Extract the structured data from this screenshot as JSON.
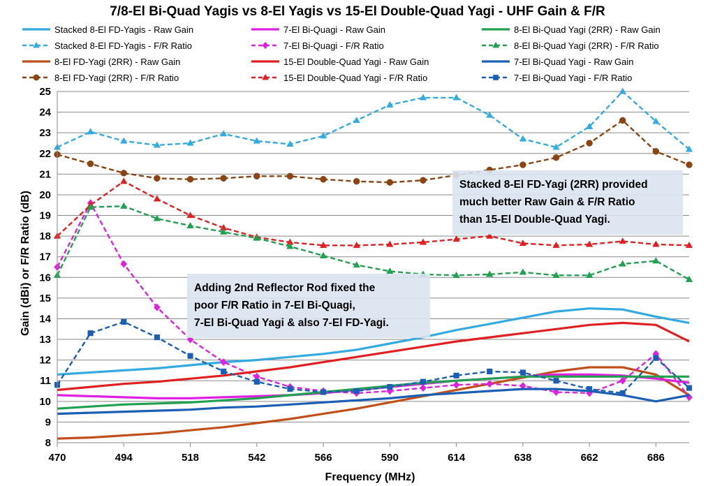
{
  "chart_data": {
    "type": "line",
    "title": "7/8-El Bi-Quad Yagis vs 8-El Yagis vs 15-El Double-Quad Yagi - UHF Gain & F/R",
    "xlabel": "Frequency (MHz)",
    "ylabel": "Gain (dBi) or F/R Ratio (dB)",
    "xlim": [
      470,
      698
    ],
    "ylim": [
      8,
      25
    ],
    "x_ticks": [
      "470",
      "494",
      "518",
      "542",
      "566",
      "590",
      "614",
      "638",
      "662",
      "686"
    ],
    "y_ticks": [
      "8",
      "9",
      "10",
      "11",
      "12",
      "13",
      "14",
      "15",
      "16",
      "17",
      "18",
      "19",
      "20",
      "21",
      "22",
      "23",
      "24",
      "25"
    ],
    "grid": "horizontal",
    "legend_position": "top",
    "x": [
      470,
      482,
      494,
      506,
      518,
      530,
      542,
      554,
      566,
      578,
      590,
      602,
      614,
      626,
      638,
      650,
      662,
      674,
      686,
      698
    ],
    "series": [
      {
        "name": "Stacked 8-El FD-Yagis - Raw Gain",
        "color": "#33aae0",
        "style": "solid",
        "marker": "none",
        "values": [
          11.3,
          11.4,
          11.5,
          11.6,
          11.75,
          11.9,
          12.0,
          12.15,
          12.3,
          12.5,
          12.8,
          13.1,
          13.45,
          13.75,
          14.05,
          14.35,
          14.5,
          14.45,
          14.1,
          13.8
        ]
      },
      {
        "name": "Stacked 8-El FD-Yagis - F/R Ratio",
        "color": "#33aae0",
        "style": "dashed",
        "marker": "triangle",
        "values": [
          22.3,
          23.05,
          22.6,
          22.4,
          22.5,
          22.95,
          22.6,
          22.45,
          22.85,
          23.6,
          24.35,
          24.7,
          24.7,
          23.85,
          22.7,
          22.3,
          23.3,
          25.0,
          23.55,
          22.2
        ]
      },
      {
        "name": "8-El FD-Yagi (2RR) - Raw Gain",
        "color": "#c0501a",
        "style": "solid",
        "marker": "none",
        "values": [
          8.2,
          8.25,
          8.35,
          8.45,
          8.6,
          8.75,
          8.95,
          9.15,
          9.4,
          9.65,
          9.95,
          10.25,
          10.55,
          10.85,
          11.15,
          11.45,
          11.65,
          11.65,
          11.3,
          10.3
        ]
      },
      {
        "name": "8-El FD-Yagi (2RR) - F/R Ratio",
        "color": "#8b4513",
        "style": "dashed",
        "marker": "circle",
        "values": [
          21.95,
          21.5,
          21.05,
          20.8,
          20.75,
          20.8,
          20.9,
          20.9,
          20.75,
          20.65,
          20.6,
          20.7,
          20.95,
          21.2,
          21.45,
          21.8,
          22.5,
          23.6,
          22.1,
          21.45
        ]
      },
      {
        "name": "7-El Bi-Quagi - Raw Gain",
        "color": "#e020e0",
        "style": "solid",
        "marker": "none",
        "values": [
          10.3,
          10.25,
          10.2,
          10.15,
          10.15,
          10.2,
          10.25,
          10.3,
          10.4,
          10.55,
          10.7,
          10.85,
          11.0,
          11.1,
          11.2,
          11.3,
          11.3,
          11.25,
          11.1,
          10.9
        ]
      },
      {
        "name": "7-El Bi-Quagi - F/R Ratio",
        "color": "#e020e0",
        "style": "dashed",
        "marker": "diamond",
        "values": [
          16.5,
          19.6,
          16.65,
          14.55,
          13.0,
          11.9,
          11.2,
          10.7,
          10.5,
          10.4,
          10.5,
          10.65,
          10.8,
          10.85,
          10.75,
          10.45,
          10.4,
          11.0,
          12.3,
          10.2
        ]
      },
      {
        "name": "15-El Double-Quad Yagi - Raw Gain",
        "color": "#e02020",
        "style": "solid",
        "marker": "none",
        "values": [
          10.55,
          10.7,
          10.85,
          10.95,
          11.1,
          11.25,
          11.45,
          11.65,
          11.9,
          12.15,
          12.4,
          12.65,
          12.9,
          13.1,
          13.3,
          13.5,
          13.7,
          13.8,
          13.7,
          12.9
        ]
      },
      {
        "name": "15-El Double-Quad Yagi - F/R Ratio",
        "color": "#e02020",
        "style": "dashed",
        "marker": "triangle",
        "values": [
          18.0,
          19.5,
          20.65,
          19.8,
          19.0,
          18.4,
          17.95,
          17.7,
          17.55,
          17.55,
          17.6,
          17.7,
          17.85,
          18.0,
          17.65,
          17.55,
          17.6,
          17.75,
          17.6,
          17.55
        ]
      },
      {
        "name": "8-El Bi-Quad Yagi (2RR) - Raw Gain",
        "color": "#20a050",
        "style": "solid",
        "marker": "none",
        "values": [
          9.65,
          9.75,
          9.85,
          9.9,
          9.95,
          10.05,
          10.15,
          10.3,
          10.45,
          10.6,
          10.75,
          10.9,
          11.0,
          11.1,
          11.2,
          11.2,
          11.2,
          11.2,
          11.2,
          11.2
        ]
      },
      {
        "name": "8-El Bi-Quad Yagi (2RR) - F/R Ratio",
        "color": "#20a050",
        "style": "dashed",
        "marker": "triangle",
        "values": [
          16.1,
          19.4,
          19.45,
          18.85,
          18.5,
          18.2,
          17.9,
          17.5,
          17.05,
          16.6,
          16.3,
          16.15,
          16.1,
          16.15,
          16.25,
          16.1,
          16.1,
          16.65,
          16.8,
          15.9
        ]
      },
      {
        "name": "7-El Bi-Quad Yagi - Raw Gain",
        "color": "#1a5fb4",
        "style": "solid",
        "marker": "none",
        "values": [
          9.4,
          9.45,
          9.5,
          9.55,
          9.6,
          9.7,
          9.75,
          9.85,
          9.95,
          10.05,
          10.15,
          10.3,
          10.4,
          10.5,
          10.6,
          10.6,
          10.5,
          10.3,
          10.0,
          10.3
        ]
      },
      {
        "name": "7-El Bi-Quad Yagi - F/R Ratio",
        "color": "#1a5fb4",
        "style": "dashed",
        "marker": "square",
        "values": [
          10.8,
          13.3,
          13.85,
          13.1,
          12.2,
          11.45,
          10.95,
          10.6,
          10.45,
          10.5,
          10.7,
          10.95,
          11.25,
          11.45,
          11.4,
          11.0,
          10.6,
          10.4,
          12.1,
          10.65
        ]
      }
    ],
    "annotations": [
      {
        "lines": [
          "Stacked 8-El FD-Yagi (2RR) provided",
          "much better Raw Gain & F/R Ratio",
          "than 15-El Double-Quad Yagi."
        ]
      },
      {
        "lines": [
          "Adding 2nd Reflector Rod fixed the",
          "poor F/R Ratio in 7-El Bi-Quagi,",
          "7-El Bi-Quad Yagi & also 7-El FD-Yagi."
        ]
      }
    ]
  }
}
